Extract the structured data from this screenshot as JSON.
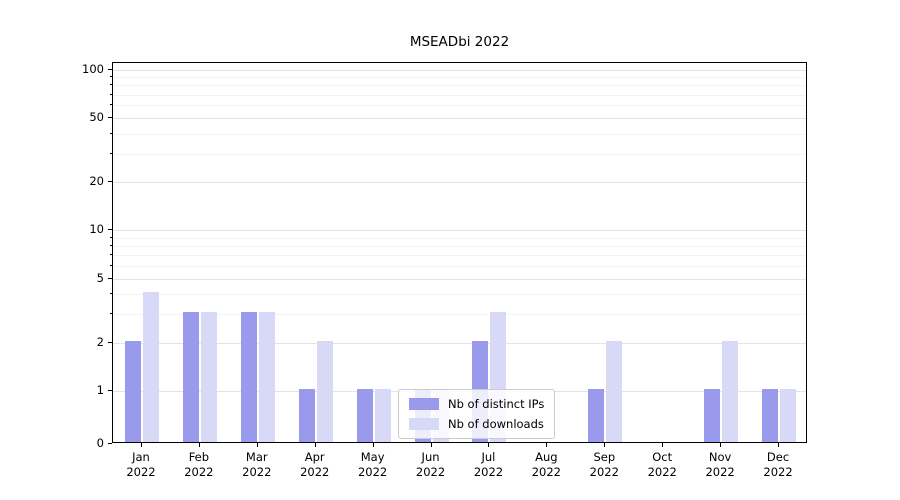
{
  "title": "MSEADbi 2022",
  "colors": {
    "distinct_ips": "#9a9aec",
    "downloads": "#d8d8f7",
    "grid_major": "#e4e4e4",
    "grid_minor": "#f2f2f2",
    "axis": "#000000",
    "legend_border": "#cccccc"
  },
  "legend": {
    "items": [
      {
        "label": "Nb of distinct IPs",
        "color": "#9a9aec"
      },
      {
        "label": "Nb of downloads",
        "color": "#d8d8f7"
      }
    ]
  },
  "y_axis": {
    "tick_labels": [
      "0",
      "1",
      "2",
      "5",
      "10",
      "20",
      "50",
      "100"
    ]
  },
  "chart_data": {
    "type": "bar",
    "title": "MSEADbi 2022",
    "categories": [
      "Jan 2022",
      "Feb 2022",
      "Mar 2022",
      "Apr 2022",
      "May 2022",
      "Jun 2022",
      "Jul 2022",
      "Aug 2022",
      "Sep 2022",
      "Oct 2022",
      "Nov 2022",
      "Dec 2022"
    ],
    "series": [
      {
        "name": "Nb of distinct IPs",
        "color": "#9a9aec",
        "values": [
          2,
          3,
          3,
          1,
          1,
          1,
          2,
          0,
          1,
          0,
          1,
          1
        ]
      },
      {
        "name": "Nb of downloads",
        "color": "#d8d8f7",
        "values": [
          4,
          3,
          3,
          2,
          1,
          1,
          3,
          0,
          2,
          0,
          2,
          1
        ]
      }
    ],
    "yscale": "symlog",
    "ylim": [
      0,
      110
    ],
    "yticks": [
      0,
      1,
      2,
      5,
      10,
      20,
      50,
      100
    ],
    "minor_yticks": [
      3,
      4,
      6,
      7,
      8,
      9,
      30,
      40,
      60,
      70,
      80,
      90
    ],
    "xlabel": "",
    "ylabel": "",
    "grid": "horizontal",
    "legend_position": "lower center"
  }
}
